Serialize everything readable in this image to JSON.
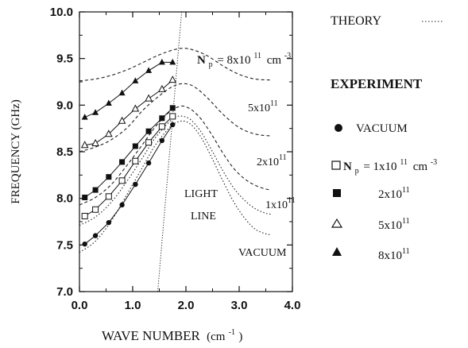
{
  "chart_data": {
    "type": "line",
    "xlabel": "WAVE NUMBER",
    "xlabel_unit": "(cm",
    "xlabel_unit_exp": "-1",
    "xlabel_unit_close": ")",
    "ylabel": "FREQUENCY (GHz)",
    "xlim": [
      0.0,
      4.0
    ],
    "ylim": [
      7.0,
      10.0
    ],
    "x_ticks": [
      "0.0",
      "1.0",
      "2.0",
      "3.0",
      "4.0"
    ],
    "y_ticks": [
      "7.0",
      "7.5",
      "8.0",
      "8.5",
      "9.0",
      "9.5",
      "10.0"
    ],
    "grid": false,
    "legend": {
      "theory_label": "THEORY",
      "experiment_label": "EXPERIMENT",
      "vacuum_label": "VACUUM",
      "np_prefix": "N",
      "np_sub": "p",
      "np_eq": "= 1x10",
      "np_exp": "11",
      "np_unit": "cm",
      "np_unit_exp": "-3",
      "entries": [
        {
          "name": "VACUUM",
          "marker": "filled-circle"
        },
        {
          "name": "1x10^11",
          "marker": "open-square"
        },
        {
          "name": "2x10^11",
          "marker": "filled-square",
          "base": "2x10",
          "exp": "11"
        },
        {
          "name": "5x10^11",
          "marker": "open-triangle",
          "base": "5x10",
          "exp": "11"
        },
        {
          "name": "8x10^11",
          "marker": "filled-triangle",
          "base": "8x10",
          "exp": "11"
        }
      ]
    },
    "annotations": {
      "top_curve_label": "= 8x10",
      "top_curve_exp": "11",
      "top_curve_unit": "cm",
      "top_curve_unit_exp": "-3",
      "top_curve_prefix": "N",
      "top_curve_sub": "p",
      "label_5": "5x10",
      "label_2": "2x10",
      "label_1": "1x10",
      "label_exp": "11",
      "vacuum_curve_label": "VACUUM",
      "light_line_1": "LIGHT",
      "light_line_2": "LINE"
    },
    "light_line": {
      "x": [
        1.47,
        1.92
      ],
      "y": [
        7.0,
        10.0
      ]
    },
    "theory_series": [
      {
        "id": "vacuum",
        "x": [
          0.0,
          0.3,
          0.6,
          0.9,
          1.2,
          1.4,
          1.6,
          1.75,
          1.85,
          1.95,
          2.05,
          2.15,
          2.3,
          2.5,
          2.7,
          2.9,
          3.1,
          3.3,
          3.5,
          3.6
        ],
        "y": [
          7.42,
          7.54,
          7.76,
          8.05,
          8.35,
          8.55,
          8.7,
          8.79,
          8.82,
          8.83,
          8.81,
          8.76,
          8.64,
          8.42,
          8.18,
          7.96,
          7.79,
          7.67,
          7.62,
          7.61
        ]
      },
      {
        "id": "1e11",
        "x": [
          0.0,
          0.3,
          0.6,
          0.9,
          1.2,
          1.4,
          1.6,
          1.75,
          1.85,
          1.95,
          2.05,
          2.15,
          2.3,
          2.5,
          2.7,
          2.9,
          3.1,
          3.3,
          3.5,
          3.6
        ],
        "y": [
          7.71,
          7.8,
          7.96,
          8.19,
          8.45,
          8.63,
          8.77,
          8.85,
          8.88,
          8.88,
          8.86,
          8.81,
          8.7,
          8.5,
          8.29,
          8.11,
          7.98,
          7.89,
          7.84,
          7.83
        ]
      },
      {
        "id": "2e11",
        "x": [
          0.0,
          0.3,
          0.6,
          0.9,
          1.2,
          1.4,
          1.6,
          1.75,
          1.85,
          1.95,
          2.05,
          2.15,
          2.3,
          2.5,
          2.7,
          2.9,
          3.1,
          3.3,
          3.5,
          3.6
        ],
        "y": [
          7.93,
          8.01,
          8.15,
          8.36,
          8.59,
          8.75,
          8.88,
          8.95,
          8.98,
          8.99,
          8.97,
          8.93,
          8.84,
          8.67,
          8.48,
          8.32,
          8.21,
          8.14,
          8.1,
          8.09
        ]
      },
      {
        "id": "5e11",
        "x": [
          0.0,
          0.3,
          0.6,
          0.9,
          1.2,
          1.5,
          1.75,
          1.95,
          2.15,
          2.4,
          2.7,
          3.0,
          3.3,
          3.6
        ],
        "y": [
          8.5,
          8.55,
          8.63,
          8.76,
          8.95,
          9.1,
          9.2,
          9.23,
          9.2,
          9.08,
          8.9,
          8.76,
          8.69,
          8.67
        ]
      },
      {
        "id": "8e11",
        "x": [
          0.0,
          0.3,
          0.6,
          0.9,
          1.2,
          1.5,
          1.75,
          1.95,
          2.15,
          2.4,
          2.7,
          3.0,
          3.3,
          3.6
        ],
        "y": [
          9.26,
          9.28,
          9.32,
          9.38,
          9.46,
          9.54,
          9.59,
          9.61,
          9.59,
          9.53,
          9.42,
          9.33,
          9.28,
          9.27
        ]
      }
    ],
    "experiment_series": [
      {
        "id": "vacuum",
        "marker": "filled-circle",
        "x": [
          0.1,
          0.3,
          0.55,
          0.8,
          1.05,
          1.3,
          1.55,
          1.75
        ],
        "y": [
          7.51,
          7.6,
          7.74,
          7.93,
          8.15,
          8.38,
          8.62,
          8.79
        ]
      },
      {
        "id": "1e11",
        "marker": "open-square",
        "x": [
          0.1,
          0.3,
          0.55,
          0.8,
          1.05,
          1.3,
          1.55,
          1.75
        ],
        "y": [
          7.81,
          7.88,
          8.02,
          8.19,
          8.4,
          8.6,
          8.77,
          8.88
        ]
      },
      {
        "id": "2e11",
        "marker": "filled-square",
        "x": [
          0.1,
          0.3,
          0.55,
          0.8,
          1.05,
          1.3,
          1.55,
          1.75
        ],
        "y": [
          8.01,
          8.09,
          8.23,
          8.39,
          8.56,
          8.72,
          8.86,
          8.97
        ]
      },
      {
        "id": "5e11",
        "marker": "open-triangle",
        "x": [
          0.1,
          0.3,
          0.55,
          0.8,
          1.05,
          1.3,
          1.55,
          1.75
        ],
        "y": [
          8.57,
          8.59,
          8.69,
          8.83,
          8.96,
          9.07,
          9.17,
          9.27
        ]
      },
      {
        "id": "8e11",
        "marker": "filled-triangle",
        "x": [
          0.1,
          0.3,
          0.55,
          0.8,
          1.05,
          1.3,
          1.55,
          1.75
        ],
        "y": [
          8.87,
          8.92,
          9.02,
          9.13,
          9.26,
          9.37,
          9.46,
          9.46
        ]
      }
    ]
  }
}
